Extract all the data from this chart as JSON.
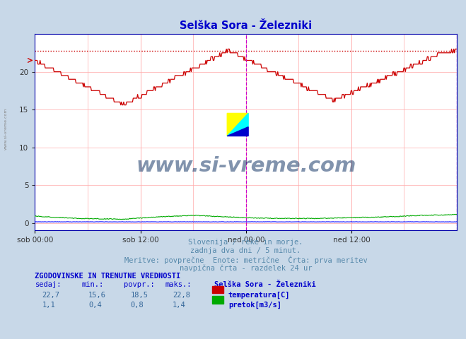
{
  "title": "Selška Sora - Železniki",
  "title_color": "#0000cc",
  "bg_color": "#c8d8e8",
  "plot_bg_color": "#ffffff",
  "grid_color": "#ffb0b0",
  "grid_color2": "#d0d0ff",
  "xlabel_ticks": [
    "sob 00:00",
    "sob 12:00",
    "ned 00:00",
    "ned 12:00"
  ],
  "ylabel_ticks": [
    0,
    5,
    10,
    15,
    20
  ],
  "ymax": 25.0,
  "ymin": -1.0,
  "temp_max_line": 22.8,
  "temp_color": "#cc0000",
  "flow_color": "#00aa00",
  "water_level_color": "#0000ff",
  "magenta_line_color": "#cc00cc",
  "watermark_text": "www.si-vreme.com",
  "watermark_color": "#1a3a6a",
  "subtitle1": "Slovenija / reke in morje.",
  "subtitle2": "zadnja dva dni / 5 minut.",
  "subtitle3": "Meritve: povprečne  Enote: metrične  Črta: prva meritev",
  "subtitle4": "navpična črta - razdelek 24 ur",
  "table_header": "ZGODOVINSKE IN TRENUTNE VREDNOSTI",
  "col_sedaj": "sedaj:",
  "col_min": "min.:",
  "col_povpr": "povpr.:",
  "col_maks": "maks.:",
  "station": "Selška Sora - Železniki",
  "temp_sedaj": "22,7",
  "temp_min": "15,6",
  "temp_povpr": "18,5",
  "temp_maks": "22,8",
  "flow_sedaj": "1,1",
  "flow_min": "0,4",
  "flow_povpr": "0,8",
  "flow_maks": "1,4",
  "legend_temp": "temperatura[C]",
  "legend_flow": "pretok[m3/s]",
  "n_points": 576,
  "temp_min_val": 15.6,
  "temp_max_val": 22.8,
  "flow_min_val": 0.4,
  "flow_max_val": 1.4,
  "flow_avg_val": 0.8,
  "side_label": "www.si-vreme.com"
}
